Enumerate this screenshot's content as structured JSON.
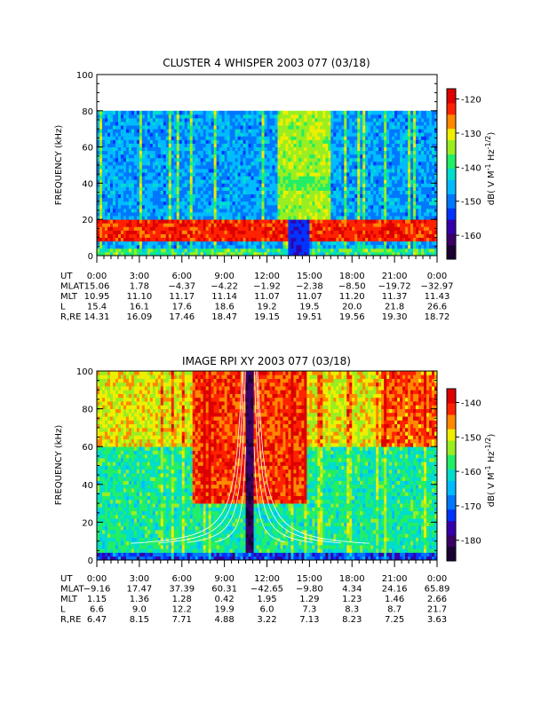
{
  "chart_data": [
    {
      "type": "heatmap",
      "title": "CLUSTER 4 WHISPER 2003 077 (03/18)",
      "ylabel": "FREQUENCY (kHz)",
      "ylim": [
        0,
        100
      ],
      "xlim": [
        0,
        24
      ],
      "y_ticks": [
        "0",
        "20",
        "40",
        "60",
        "80",
        "100"
      ],
      "colorbar": {
        "label": "dB( V M",
        "label_sup1": "-1",
        "label_mid": " Hz",
        "label_sup2": "-1/2",
        "label_end": ")",
        "range": [
          -167,
          -117
        ],
        "ticks": [
          "-120",
          "-130",
          "-140",
          "-150",
          "-160"
        ],
        "tick_values": [
          -120,
          -130,
          -140,
          -150,
          -160
        ]
      },
      "data_ceiling_khz": 80,
      "ephemeris": [
        {
          "label": "UT",
          "values": [
            "0:00",
            "3:00",
            "6:00",
            "9:00",
            "12:00",
            "15:00",
            "18:00",
            "21:00",
            "0:00"
          ]
        },
        {
          "label": "MLAT",
          "values": [
            "15.06",
            "1.78",
            "−4.37",
            "−4.22",
            "−1.92",
            "−2.38",
            "−8.50",
            "−19.72",
            "−32.97"
          ]
        },
        {
          "label": "MLT",
          "values": [
            "10.95",
            "11.10",
            "11.17",
            "11.14",
            "11.07",
            "11.07",
            "11.20",
            "11.37",
            "11.43"
          ]
        },
        {
          "label": "L",
          "values": [
            "15.4",
            "16.1",
            "17.6",
            "18.6",
            "19.2",
            "19.5",
            "20.0",
            "21.8",
            "26.6"
          ]
        },
        {
          "label": "R,RE",
          "values": [
            "14.31",
            "16.09",
            "17.46",
            "18.47",
            "19.15",
            "19.51",
            "19.56",
            "19.30",
            "18.72"
          ]
        }
      ]
    },
    {
      "type": "heatmap",
      "title": "IMAGE RPI XY 2003 077 (03/18)",
      "ylabel": "FREQUENCY (kHz)",
      "ylim": [
        0,
        100
      ],
      "xlim": [
        0,
        24
      ],
      "y_ticks": [
        "0",
        "20",
        "40",
        "60",
        "80",
        "100"
      ],
      "colorbar": {
        "label": "dB( V M",
        "label_sup1": "-1",
        "label_mid": " Hz",
        "label_sup2": "-1/2",
        "label_end": ")",
        "range": [
          -186,
          -136
        ],
        "ticks": [
          "-140",
          "-150",
          "-160",
          "-170",
          "-180"
        ],
        "tick_values": [
          -140,
          -150,
          -160,
          -170,
          -180
        ]
      },
      "perigee_ut_hours": 10.8,
      "ephemeris": [
        {
          "label": "UT",
          "values": [
            "0:00",
            "3:00",
            "6:00",
            "9:00",
            "12:00",
            "15:00",
            "18:00",
            "21:00",
            "0:00"
          ]
        },
        {
          "label": "MLAT",
          "values": [
            "−9.16",
            "17.47",
            "37.39",
            "60.31",
            "−42.65",
            "−9.80",
            "4.34",
            "24.16",
            "65.89"
          ]
        },
        {
          "label": "MLT",
          "values": [
            "1.15",
            "1.36",
            "1.28",
            "0.42",
            "1.95",
            "1.29",
            "1.23",
            "1.46",
            "2.66"
          ]
        },
        {
          "label": "L",
          "values": [
            "6.6",
            "9.0",
            "12.2",
            "19.9",
            "6.0",
            "7.3",
            "8.3",
            "8.7",
            "21.7"
          ]
        },
        {
          "label": "R,RE",
          "values": [
            "6.47",
            "8.15",
            "7.71",
            "4.88",
            "3.22",
            "7.13",
            "8.23",
            "7.25",
            "3.63"
          ]
        }
      ]
    }
  ],
  "colors": {
    "palette": [
      "#1a0033",
      "#3a0066",
      "#3300aa",
      "#0033ff",
      "#0077ff",
      "#00bbff",
      "#00ddcc",
      "#22ee66",
      "#99ee22",
      "#eeee00",
      "#ff8800",
      "#ff2200",
      "#dd0000"
    ]
  }
}
